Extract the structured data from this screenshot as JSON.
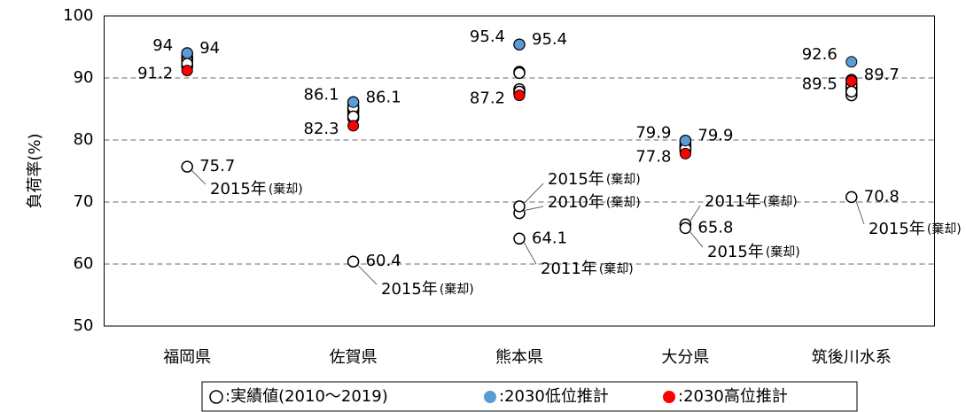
{
  "chart_data": {
    "type": "dot",
    "y_label": "負荷率(%)",
    "categories": [
      "福岡県",
      "佐賀県",
      "熊本県",
      "大分県",
      "筑後川水系"
    ],
    "ylim": [
      50,
      100
    ],
    "yticks": [
      50,
      60,
      70,
      80,
      90,
      100
    ],
    "grid": true,
    "series": [
      {
        "name": ":実績値(2010～2019)",
        "color": "#ffffff",
        "stroke": "#000000",
        "values": [
          [
            93.0,
            92.5,
            93.5,
            94.0,
            92.0,
            75.7,
            93.2,
            92.8,
            91.8,
            92.3
          ],
          [
            84.5,
            85.0,
            85.5,
            86.1,
            84.0,
            60.4,
            83.5,
            84.8,
            85.2,
            83.8
          ],
          [
            68.2,
            64.1,
            91.0,
            95.4,
            88.0,
            69.3,
            90.8,
            87.5,
            88.2,
            87.8
          ],
          [
            79.0,
            66.4,
            79.5,
            79.9,
            78.5,
            65.8,
            78.8,
            79.2,
            78.2,
            78.6
          ],
          [
            88.5,
            88.0,
            89.0,
            89.7,
            87.5,
            70.8,
            88.2,
            87.2,
            88.8,
            87.8
          ]
        ]
      },
      {
        "name": ":2030低位推計",
        "color": "#5b9bd5",
        "label_color": "#0070c0",
        "values": [
          94.0,
          86.1,
          95.4,
          79.9,
          92.6
        ]
      },
      {
        "name": ":2030高位推計",
        "color": "#ff0000",
        "label_color": "#ff0000",
        "values": [
          91.2,
          82.3,
          87.2,
          77.8,
          89.5
        ]
      }
    ],
    "annotations": [
      {
        "text": "2015年",
        "note": "(棄却)"
      },
      {
        "text": "2015年",
        "note": "(棄却)"
      },
      {
        "text": "2015年",
        "note": "(棄却)"
      },
      {
        "text": "2010年",
        "note": "(棄却)"
      },
      {
        "text": "2011年",
        "note": "(棄却)"
      },
      {
        "text": "2011年",
        "note": "(棄却)"
      },
      {
        "text": "2015年",
        "note": "(棄却)"
      },
      {
        "text": "2015年",
        "note": "(棄却)"
      }
    ]
  }
}
